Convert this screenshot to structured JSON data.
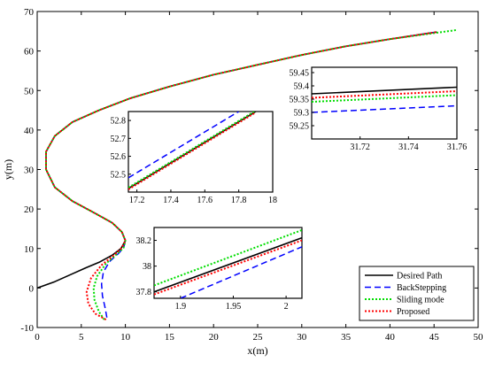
{
  "chart_data": {
    "type": "line",
    "xlabel": "x(m)",
    "ylabel": "y(m)",
    "xlim": [
      0,
      50
    ],
    "ylim": [
      -10,
      70
    ],
    "xticks": [
      0,
      5,
      10,
      15,
      20,
      25,
      30,
      35,
      40,
      45,
      50
    ],
    "yticks": [
      -10,
      0,
      10,
      20,
      30,
      40,
      50,
      60,
      70
    ],
    "grid": false,
    "legend": {
      "placement": "bottom-right",
      "entries": [
        "Desired Path",
        "BackStepping",
        "Sliding mode",
        "Proposed"
      ]
    },
    "series": [
      {
        "name": "Desired Path",
        "color": "#000000",
        "style": "solid",
        "x": [
          0,
          2,
          4,
          5.5,
          7,
          8.5,
          9.5,
          10,
          9.6,
          8.5,
          6.5,
          4,
          2,
          1,
          1,
          2,
          4,
          7,
          10.5,
          15,
          20,
          25,
          30,
          35,
          40,
          45.3
        ],
        "y": [
          0,
          1.6,
          3.6,
          5.1,
          6.5,
          8.3,
          10,
          12,
          14.2,
          16.5,
          19,
          22,
          25.5,
          30,
          34.5,
          38.5,
          42,
          45,
          48,
          51,
          54,
          56.5,
          59,
          61.2,
          63,
          64.8
        ]
      },
      {
        "name": "BackStepping",
        "color": "#0000ff",
        "style": "dashed",
        "x": [
          7.9,
          7.7,
          7.4,
          7.3,
          7.5,
          8.2,
          9.2,
          9.8,
          10,
          9.6,
          8.5,
          6.5,
          4,
          2,
          1,
          1,
          2,
          4,
          7,
          10.5,
          15,
          20,
          25,
          30,
          35,
          40,
          45.3
        ],
        "y": [
          -7.5,
          -5,
          -2,
          1,
          4,
          6.7,
          8.7,
          10.2,
          12,
          14.2,
          16.5,
          19,
          22,
          25.5,
          30,
          34.5,
          38.5,
          42,
          45,
          48,
          51,
          54,
          56.5,
          59,
          61.2,
          63,
          64.8
        ]
      },
      {
        "name": "Sliding mode",
        "color": "#00dd00",
        "style": "dotted",
        "x": [
          7.6,
          7,
          6.5,
          6.4,
          6.8,
          7.8,
          9,
          9.8,
          10,
          9.6,
          8.5,
          6.5,
          4,
          2,
          1,
          1,
          2,
          4,
          7,
          10.5,
          15,
          20,
          25,
          30,
          35,
          40,
          47.5
        ],
        "y": [
          -8,
          -6,
          -3,
          0,
          3,
          6.2,
          8.5,
          10.2,
          12,
          14.2,
          16.5,
          19,
          22,
          25.5,
          30,
          34.5,
          38.5,
          42,
          45,
          48,
          51,
          54,
          56.5,
          59,
          61.2,
          63,
          65.3
        ]
      },
      {
        "name": "Proposed",
        "color": "#ff0000",
        "style": "dotted",
        "x": [
          7.8,
          6.6,
          5.8,
          5.6,
          6.1,
          7.3,
          8.7,
          9.6,
          10,
          9.6,
          8.5,
          6.5,
          4,
          2,
          1,
          1,
          2,
          4,
          7,
          10.5,
          15,
          20,
          25,
          30,
          35,
          40,
          45.3
        ],
        "y": [
          -8,
          -6.5,
          -4,
          -1,
          2.5,
          5.8,
          8.3,
          10.2,
          12,
          14.2,
          16.5,
          19,
          22,
          25.5,
          30,
          34.5,
          38.5,
          42,
          45,
          48,
          51,
          54,
          56.5,
          59,
          61.2,
          63,
          64.8
        ]
      }
    ],
    "insets": [
      {
        "id": "inset-top-right",
        "xlim": [
          31.7,
          31.76
        ],
        "ylim": [
          59.2,
          59.47
        ],
        "xticks": [
          31.72,
          31.74,
          31.76
        ],
        "yticks": [
          59.25,
          59.3,
          59.35,
          59.4,
          59.45
        ],
        "lines": [
          {
            "series": "Desired Path",
            "x": [
              31.7,
              31.76
            ],
            "y": [
              59.37,
              59.395
            ]
          },
          {
            "series": "BackStepping",
            "x": [
              31.7,
              31.76
            ],
            "y": [
              59.3,
              59.325
            ]
          },
          {
            "series": "Sliding mode",
            "x": [
              31.7,
              31.76
            ],
            "y": [
              59.34,
              59.365
            ]
          },
          {
            "series": "Proposed",
            "x": [
              31.7,
              31.76
            ],
            "y": [
              59.355,
              59.38
            ]
          }
        ]
      },
      {
        "id": "inset-middle",
        "xlim": [
          17.15,
          18
        ],
        "ylim": [
          52.4,
          52.85
        ],
        "xticks": [
          17.2,
          17.4,
          17.6,
          17.8,
          18
        ],
        "yticks": [
          52.5,
          52.6,
          52.7,
          52.8
        ],
        "lines": [
          {
            "series": "Desired Path",
            "x": [
              17.15,
              17.9
            ],
            "y": [
              52.42,
              52.85
            ]
          },
          {
            "series": "BackStepping",
            "x": [
              17.15,
              17.8
            ],
            "y": [
              52.48,
              52.85
            ]
          },
          {
            "series": "Sliding mode",
            "x": [
              17.15,
              17.9
            ],
            "y": [
              52.425,
              52.855
            ]
          },
          {
            "series": "Proposed",
            "x": [
              17.15,
              17.9
            ],
            "y": [
              52.415,
              52.845
            ]
          }
        ]
      },
      {
        "id": "inset-bottom",
        "xlim": [
          1.875,
          2.015
        ],
        "ylim": [
          37.75,
          38.3
        ],
        "xticks": [
          1.9,
          1.95,
          2
        ],
        "yticks": [
          37.8,
          38,
          38.2
        ],
        "lines": [
          {
            "series": "Desired Path",
            "x": [
              1.875,
              2.015
            ],
            "y": [
              37.8,
              38.22
            ]
          },
          {
            "series": "BackStepping",
            "x": [
              1.9,
              2.015
            ],
            "y": [
              37.75,
              38.15
            ]
          },
          {
            "series": "Sliding mode",
            "x": [
              1.875,
              2.015
            ],
            "y": [
              37.85,
              38.28
            ]
          },
          {
            "series": "Proposed",
            "x": [
              1.875,
              2.015
            ],
            "y": [
              37.78,
              38.2
            ]
          }
        ]
      }
    ]
  }
}
